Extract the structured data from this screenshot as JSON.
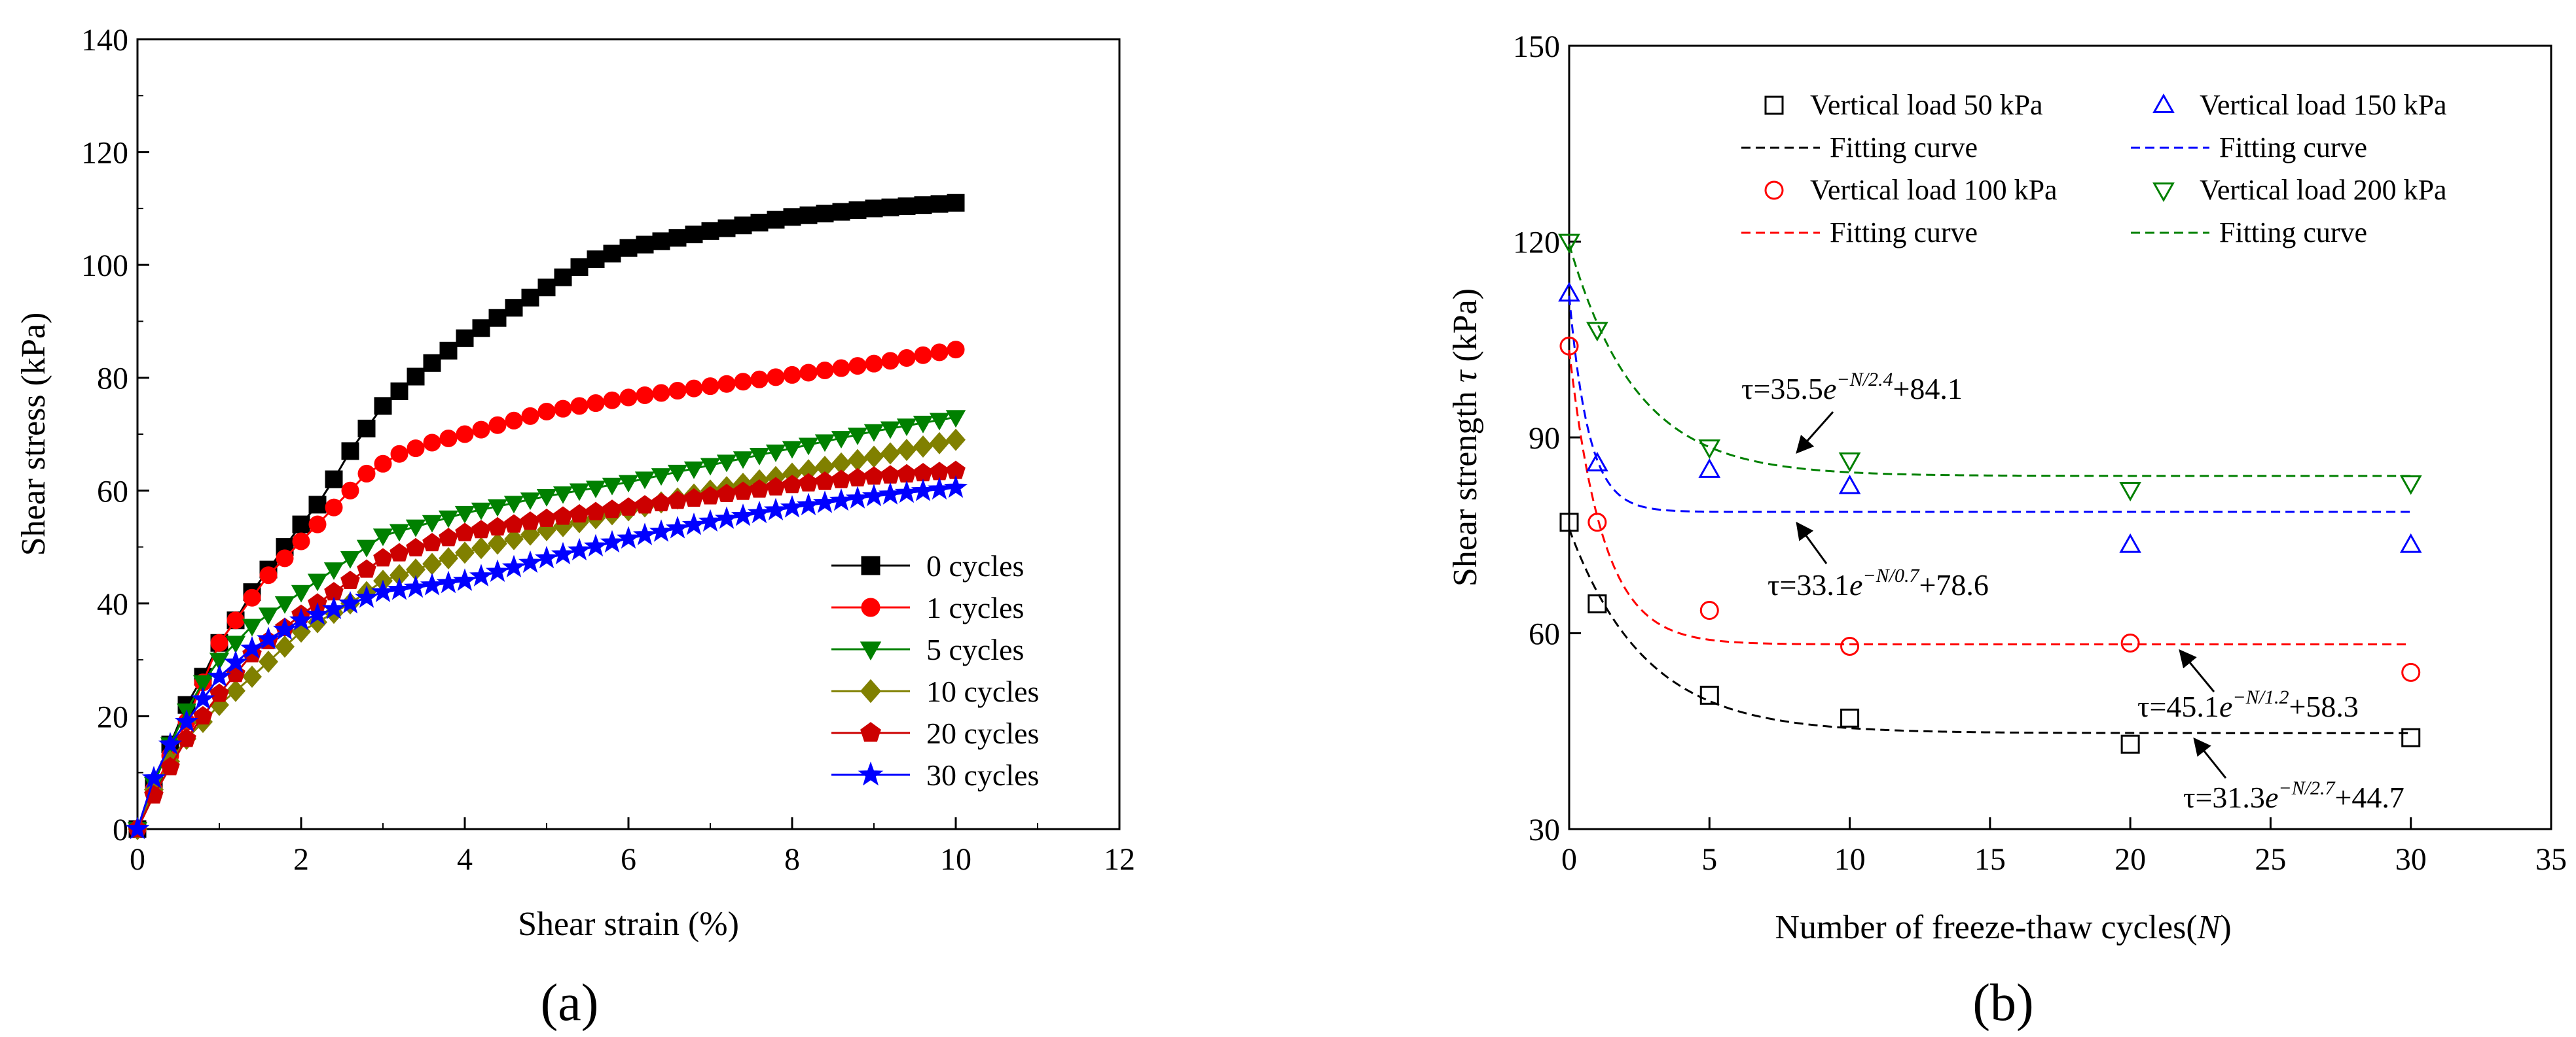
{
  "chart_data": [
    {
      "type": "line",
      "panel_label": "(a)",
      "xlabel": "Shear strain (%)",
      "ylabel": "Shear stress (kPa)",
      "xlim": [
        0,
        12
      ],
      "ylim": [
        0,
        140
      ],
      "xticks": [
        0,
        2,
        4,
        6,
        8,
        10,
        12
      ],
      "yticks": [
        0,
        20,
        40,
        60,
        80,
        100,
        120,
        140
      ],
      "legend_position": "lower-right",
      "series": [
        {
          "name": "0  cycles",
          "color": "#000000",
          "marker": "square",
          "anchors": [
            [
              0,
              0
            ],
            [
              0.2,
              8
            ],
            [
              0.4,
              15
            ],
            [
              0.6,
              22
            ],
            [
              0.8,
              27
            ],
            [
              1,
              33
            ],
            [
              1.2,
              37
            ],
            [
              1.4,
              42
            ],
            [
              1.6,
              46
            ],
            [
              1.8,
              50
            ],
            [
              2,
              54
            ],
            [
              2.2,
              57.5
            ],
            [
              2.4,
              62
            ],
            [
              2.6,
              67
            ],
            [
              2.8,
              71
            ],
            [
              3,
              75
            ],
            [
              3.5,
              81.5
            ],
            [
              4,
              87
            ],
            [
              4.5,
              91.5
            ],
            [
              5,
              96
            ],
            [
              5.5,
              100.5
            ],
            [
              6,
              103
            ],
            [
              7,
              106
            ],
            [
              8,
              108.5
            ],
            [
              9,
              110
            ],
            [
              10,
              111
            ]
          ]
        },
        {
          "name": "1  cycles",
          "color": "#ff0000",
          "marker": "circle",
          "anchors": [
            [
              0,
              0
            ],
            [
              0.2,
              7
            ],
            [
              0.4,
              13
            ],
            [
              0.6,
              19
            ],
            [
              0.8,
              26
            ],
            [
              1,
              33
            ],
            [
              1.2,
              37
            ],
            [
              1.6,
              45
            ],
            [
              2,
              51
            ],
            [
              2.4,
              57
            ],
            [
              2.8,
              63
            ],
            [
              3.2,
              66.5
            ],
            [
              3.6,
              68.5
            ],
            [
              4,
              70
            ],
            [
              5,
              74
            ],
            [
              6,
              76.5
            ],
            [
              7,
              78.5
            ],
            [
              8,
              80.5
            ],
            [
              9,
              82.5
            ],
            [
              10,
              85
            ]
          ]
        },
        {
          "name": "5  cycles",
          "color": "#008000",
          "marker": "triangle-down",
          "anchors": [
            [
              0,
              0
            ],
            [
              0.2,
              8
            ],
            [
              0.4,
              15
            ],
            [
              0.6,
              21
            ],
            [
              0.8,
              26
            ],
            [
              1,
              30
            ],
            [
              1.4,
              36
            ],
            [
              2,
              42
            ],
            [
              2.6,
              48
            ],
            [
              3,
              52
            ],
            [
              4,
              56
            ],
            [
              5,
              59
            ],
            [
              6,
              61.5
            ],
            [
              7,
              64.5
            ],
            [
              8,
              67.5
            ],
            [
              9,
              70.5
            ],
            [
              10,
              73
            ]
          ]
        },
        {
          "name": "10 cycles",
          "color": "#808000",
          "marker": "diamond",
          "anchors": [
            [
              0,
              0
            ],
            [
              0.2,
              7
            ],
            [
              0.4,
              12
            ],
            [
              0.6,
              16
            ],
            [
              0.8,
              19
            ],
            [
              1,
              22
            ],
            [
              1.4,
              27
            ],
            [
              2,
              35
            ],
            [
              2.6,
              40
            ],
            [
              3,
              44
            ],
            [
              4,
              49
            ],
            [
              5,
              53
            ],
            [
              6,
              56.5
            ],
            [
              7,
              60
            ],
            [
              8,
              63
            ],
            [
              9,
              66
            ],
            [
              10,
              69
            ]
          ]
        },
        {
          "name": "20 cycles",
          "color": "#cc0000",
          "marker": "pentagon",
          "anchors": [
            [
              0,
              0
            ],
            [
              0.2,
              6
            ],
            [
              0.4,
              11
            ],
            [
              0.6,
              16
            ],
            [
              0.8,
              20
            ],
            [
              1,
              24
            ],
            [
              1.4,
              31
            ],
            [
              2,
              38
            ],
            [
              2.6,
              44
            ],
            [
              3,
              48
            ],
            [
              4,
              52.5
            ],
            [
              5,
              55
            ],
            [
              6,
              57
            ],
            [
              7,
              59
            ],
            [
              8,
              61
            ],
            [
              9,
              62.5
            ],
            [
              10,
              63.5
            ]
          ]
        },
        {
          "name": "30 cycles",
          "color": "#0000ff",
          "marker": "star",
          "anchors": [
            [
              0,
              0
            ],
            [
              0.2,
              9
            ],
            [
              0.4,
              15
            ],
            [
              0.6,
              19
            ],
            [
              0.8,
              23
            ],
            [
              1,
              27
            ],
            [
              1.4,
              32
            ],
            [
              2,
              37
            ],
            [
              2.6,
              40
            ],
            [
              3,
              42
            ],
            [
              4,
              44
            ],
            [
              5,
              48
            ],
            [
              6,
              51.5
            ],
            [
              7,
              54.5
            ],
            [
              8,
              57
            ],
            [
              9,
              59
            ],
            [
              10,
              60.5
            ]
          ]
        }
      ]
    },
    {
      "type": "scatter",
      "panel_label": "(b)",
      "xlabel_main": "Number of freeze-thaw cycles",
      "xlabel_paren_open": "(",
      "xlabel_var": "N",
      "xlabel_paren_close": ")",
      "ylabel_main": "Shear strength ",
      "ylabel_var": "τ",
      "ylabel_unit": " (kPa)",
      "xlim": [
        0,
        35
      ],
      "ylim": [
        30,
        150
      ],
      "xticks": [
        0,
        5,
        10,
        15,
        20,
        25,
        30,
        35
      ],
      "yticks": [
        30,
        60,
        90,
        120,
        150
      ],
      "legend_position": "top",
      "series": [
        {
          "name": "Vertical load 50 kPa",
          "fit_label": "Fitting curve",
          "color": "#000000",
          "marker": "square-open",
          "x": [
            0,
            1,
            5,
            10,
            20,
            30
          ],
          "y": [
            77,
            64.5,
            50.5,
            47,
            43,
            44
          ],
          "fit": {
            "a": 31.3,
            "b": 2.7,
            "c": 44.7
          }
        },
        {
          "name": "Vertical load 150 kPa",
          "fit_label": "Fitting curve",
          "color": "#0000ff",
          "marker": "triangle-up-open",
          "x": [
            0,
            1,
            5,
            10,
            20,
            30
          ],
          "y": [
            112,
            86,
            85,
            82.5,
            73.5,
            73.5
          ],
          "fit": {
            "a": 33.1,
            "b": 0.7,
            "c": 78.6
          }
        },
        {
          "name": "Vertical load 100 kPa",
          "fit_label": "Fitting curve",
          "color": "#ff0000",
          "marker": "circle-open",
          "x": [
            0,
            1,
            5,
            10,
            20,
            30
          ],
          "y": [
            104,
            77,
            63.5,
            58,
            58.5,
            54
          ],
          "fit": {
            "a": 45.1,
            "b": 1.2,
            "c": 58.3
          }
        },
        {
          "name": "Vertical load 200 kPa",
          "fit_label": "Fitting curve",
          "color": "#008000",
          "marker": "triangle-down-open",
          "x": [
            0,
            1,
            5,
            10,
            20,
            30
          ],
          "y": [
            120,
            106.5,
            88.5,
            86.5,
            82,
            83
          ],
          "fit": {
            "a": 35.5,
            "b": 2.4,
            "c": 84.1
          }
        }
      ],
      "annotations": [
        {
          "id": "eq200",
          "prefix": "τ=35.5",
          "e": "e",
          "exp": "−N/2.4",
          "suffix": "+84.1"
        },
        {
          "id": "eq150",
          "prefix": "τ=33.1",
          "e": "e",
          "exp": "−N/0.7",
          "suffix": "+78.6"
        },
        {
          "id": "eq100",
          "prefix": "τ=45.1",
          "e": "e",
          "exp": "−N/1.2",
          "suffix": "+58.3"
        },
        {
          "id": "eq50",
          "prefix": "τ=31.3",
          "e": "e",
          "exp": "−N/2.7",
          "suffix": "+44.7"
        }
      ]
    }
  ]
}
